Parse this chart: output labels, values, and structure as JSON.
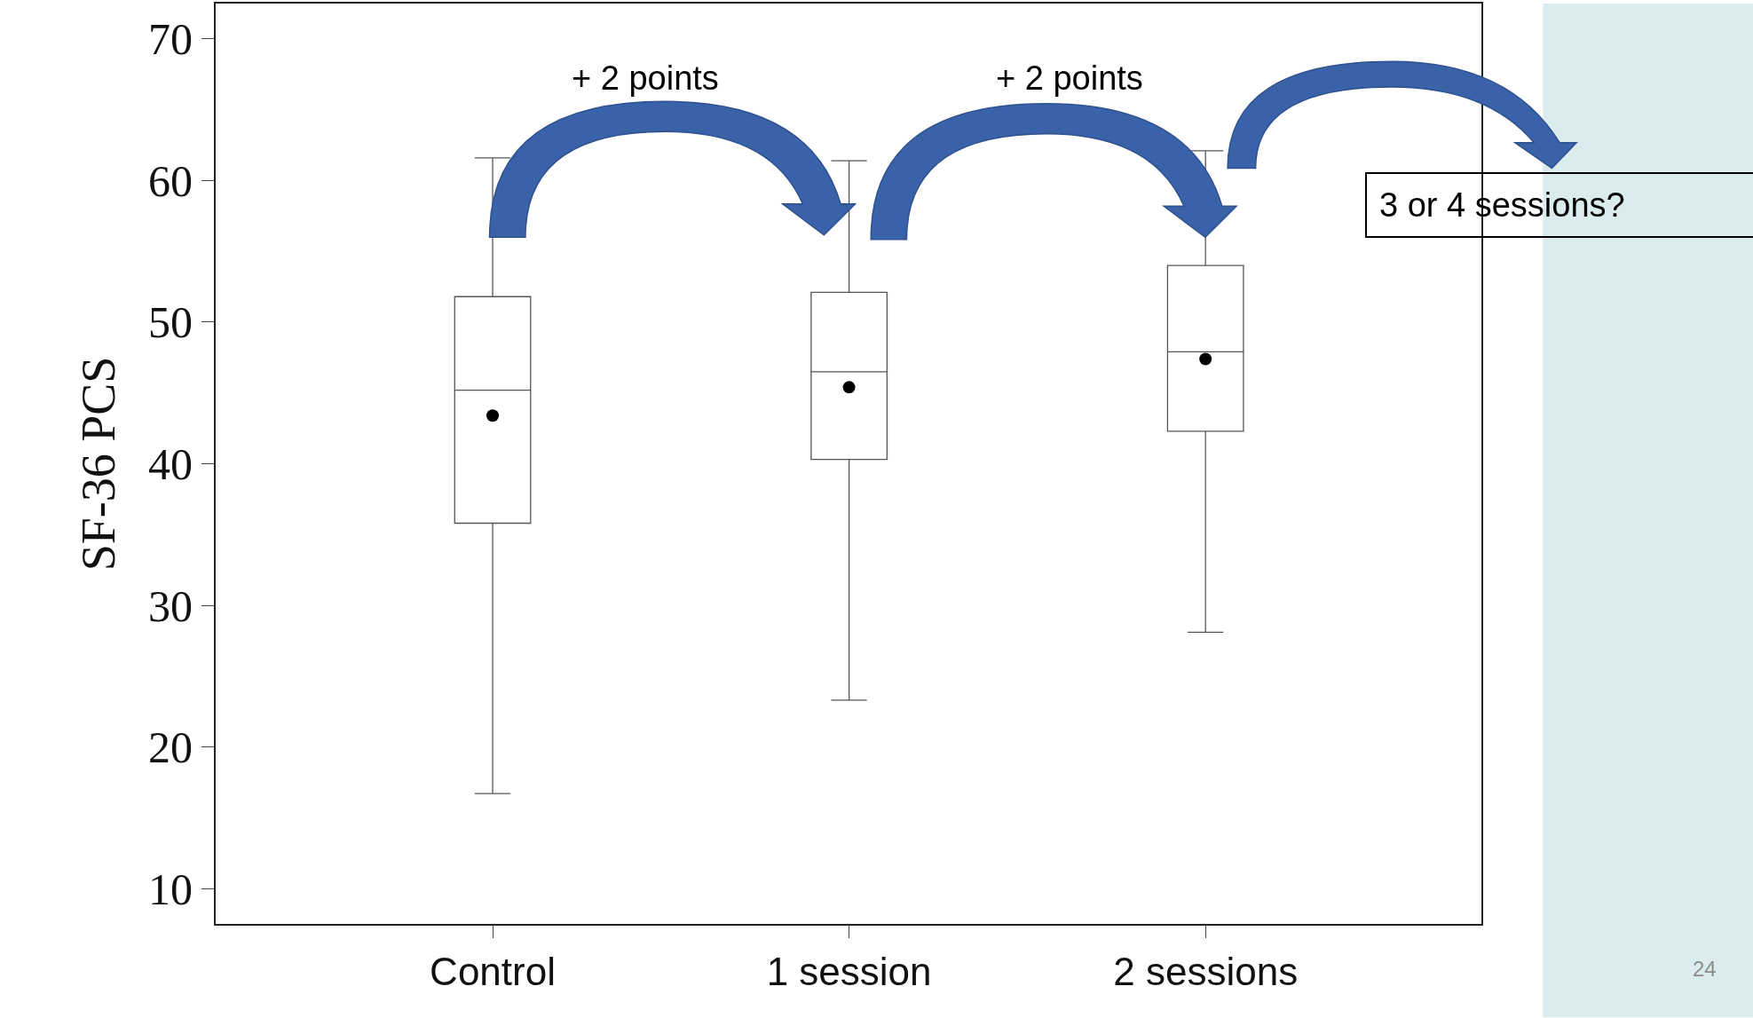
{
  "chart_data": {
    "type": "box",
    "categories": [
      "Control",
      "1 session",
      "2 sessions"
    ],
    "boxes": [
      {
        "low": 16.7,
        "q1": 35.8,
        "median": 45.2,
        "q3": 51.8,
        "high": 61.6,
        "mean": 43.4
      },
      {
        "low": 23.3,
        "q1": 40.3,
        "median": 46.5,
        "q3": 52.1,
        "high": 61.4,
        "mean": 45.4
      },
      {
        "low": 28.1,
        "q1": 42.3,
        "median": 47.9,
        "q3": 54.0,
        "high": 62.1,
        "mean": 47.4
      }
    ],
    "ylabel": "SF-36 PCS",
    "ylim": [
      7.5,
      72.5
    ],
    "yticks": [
      10,
      20,
      30,
      40,
      50,
      60,
      70
    ],
    "marker": "circle",
    "legend": false,
    "annotations": [
      "+ 2 points",
      "+ 2 points",
      "3 or 4 sessions?",
      "24"
    ]
  }
}
